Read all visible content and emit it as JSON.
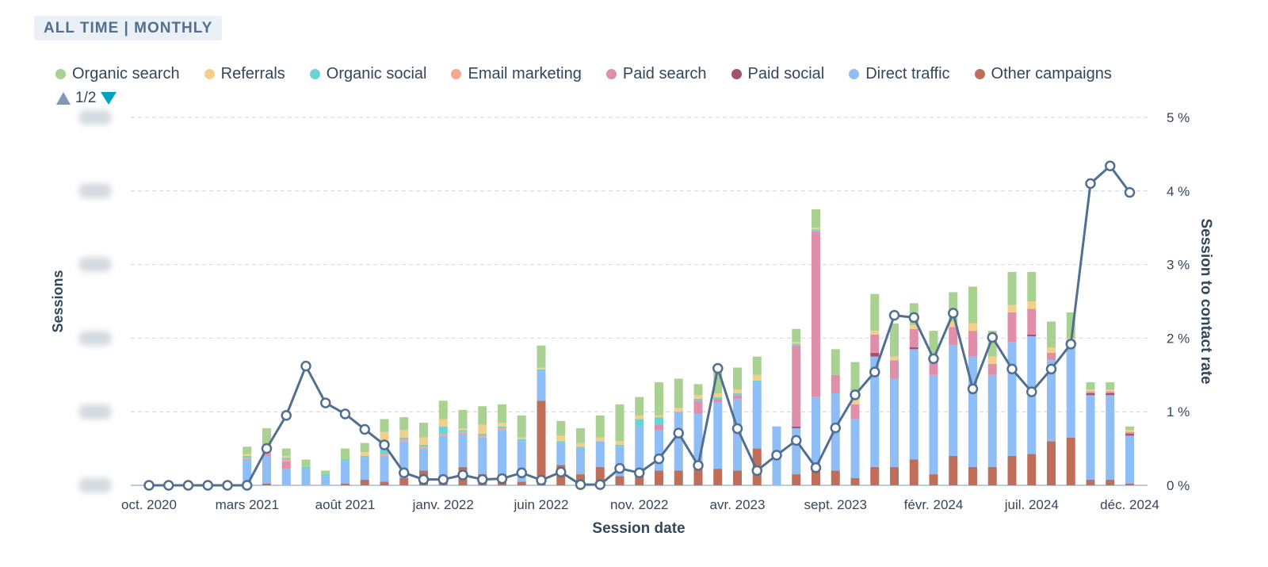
{
  "header": {
    "filter_label": "ALL TIME | MONTHLY"
  },
  "legend": {
    "items": [
      {
        "label": "Organic search",
        "color": "#a8d192"
      },
      {
        "label": "Referrals",
        "color": "#f2d08b"
      },
      {
        "label": "Organic social",
        "color": "#6bd3d6"
      },
      {
        "label": "Email marketing",
        "color": "#f2a98c"
      },
      {
        "label": "Paid search",
        "color": "#e08fab"
      },
      {
        "label": "Paid social",
        "color": "#a5506e"
      },
      {
        "label": "Direct traffic",
        "color": "#8fbdf5"
      },
      {
        "label": "Other campaigns",
        "color": "#bf6e5a"
      }
    ],
    "pager": "1/2"
  },
  "chart_data": {
    "type": "bar",
    "stacked": true,
    "xlabel": "Session date",
    "ylabel": "Sessions",
    "y2label": "Session to contact rate",
    "y_axis_blurred": true,
    "y2_ticks": [
      "0 %",
      "1 %",
      "2 %",
      "3 %",
      "4 %",
      "5 %"
    ],
    "ylim": [
      0,
      100
    ],
    "y2lim": [
      0,
      5
    ],
    "grid": true,
    "legend_position": "top",
    "x_tick_labels": [
      "oct. 2020",
      "mars 2021",
      "août 2021",
      "janv. 2022",
      "juin 2022",
      "nov. 2022",
      "avr. 2023",
      "sept. 2023",
      "févr. 2024",
      "juil. 2024",
      "déc. 2024"
    ],
    "x_tick_every": 5,
    "categories": [
      "oct. 2020",
      "nov. 2020",
      "déc. 2020",
      "janv. 2021",
      "févr. 2021",
      "mars 2021",
      "avr. 2021",
      "mai 2021",
      "juin 2021",
      "juil. 2021",
      "août 2021",
      "sept. 2021",
      "oct. 2021",
      "nov. 2021",
      "déc. 2021",
      "janv. 2022",
      "févr. 2022",
      "mars 2022",
      "avr. 2022",
      "mai 2022",
      "juin 2022",
      "juil. 2022",
      "août 2022",
      "sept. 2022",
      "oct. 2022",
      "nov. 2022",
      "déc. 2022",
      "janv. 2023",
      "févr. 2023",
      "mars 2023",
      "avr. 2023",
      "mai 2023",
      "juin 2023",
      "juil. 2023",
      "août 2023",
      "sept. 2023",
      "oct. 2023",
      "nov. 2023",
      "déc. 2023",
      "janv. 2024",
      "févr. 2024",
      "mars 2024",
      "avr. 2024",
      "mai 2024",
      "juin 2024",
      "juil. 2024",
      "août 2024",
      "sept. 2024",
      "oct. 2024",
      "nov. 2024",
      "déc. 2024"
    ],
    "series": [
      {
        "name": "Other campaigns",
        "values": [
          0,
          0,
          0,
          0,
          0,
          0,
          0.5,
          0,
          0,
          0,
          0.5,
          1.5,
          1,
          2,
          4,
          2.5,
          5,
          3,
          3,
          1,
          23,
          5.5,
          3,
          5,
          2.5,
          3,
          4,
          4,
          4.5,
          4.5,
          4,
          10,
          0,
          3,
          4,
          4,
          2,
          5,
          5,
          7,
          3,
          8,
          5,
          5,
          8,
          8.5,
          12,
          13,
          1.5,
          1.5,
          0.5
        ]
      },
      {
        "name": "Direct traffic",
        "values": [
          0,
          0,
          0,
          0,
          0,
          7,
          7.5,
          4.5,
          4.5,
          2.5,
          6,
          6,
          7,
          10,
          6,
          11,
          9,
          10,
          12,
          11,
          8,
          6,
          7,
          7,
          8,
          13,
          11,
          16,
          15,
          18,
          19.5,
          18,
          16,
          12.5,
          20,
          21,
          16,
          30,
          24,
          30,
          27,
          30,
          30,
          25,
          31,
          32,
          22,
          25,
          23,
          23,
          13
        ]
      },
      {
        "name": "Paid social",
        "values": [
          0,
          0,
          0,
          0,
          0,
          0,
          0,
          0,
          0,
          0,
          0,
          0,
          0,
          0,
          0,
          0,
          0,
          0,
          0,
          0,
          0,
          0,
          0,
          0,
          0,
          0,
          0,
          0,
          0,
          0,
          0,
          0,
          0,
          0.5,
          0,
          0,
          0,
          1,
          0,
          0.5,
          0,
          0,
          0,
          0,
          0,
          0.5,
          0,
          0.5,
          0.5,
          0.5,
          0.5
        ]
      },
      {
        "name": "Paid search",
        "values": [
          0,
          0,
          0,
          0,
          0,
          0,
          0.5,
          2,
          0,
          0,
          0,
          0,
          0,
          0,
          0,
          0,
          0,
          0,
          0,
          0,
          0,
          0,
          0,
          0,
          0,
          0,
          1.5,
          0,
          3.5,
          1,
          1,
          0,
          0,
          22,
          45,
          5,
          4,
          5,
          5,
          5,
          4,
          5,
          7,
          3,
          8,
          7,
          2,
          1,
          0.5,
          0.5,
          0.5
        ]
      },
      {
        "name": "Email marketing",
        "values": [
          0,
          0,
          0,
          0,
          0,
          0.5,
          0.5,
          0.5,
          0,
          0,
          0,
          0,
          0.5,
          0.5,
          0.5,
          0.5,
          0.5,
          0.5,
          0.5,
          0,
          0,
          0,
          0,
          0,
          0,
          0,
          0,
          0,
          0,
          0,
          0,
          0,
          0,
          0,
          0,
          0,
          0,
          0,
          0,
          0,
          0,
          0,
          0,
          0,
          0,
          0,
          0,
          0,
          0,
          0,
          0
        ]
      },
      {
        "name": "Organic social",
        "values": [
          0,
          0,
          0,
          0,
          0,
          0.5,
          0.5,
          0.5,
          0.5,
          0.5,
          0.5,
          0.5,
          2,
          0.5,
          0.5,
          2,
          0.5,
          0.5,
          0.5,
          0.5,
          0.5,
          0.5,
          0.5,
          0,
          0.5,
          2,
          2,
          0,
          0.5,
          0.5,
          0.5,
          0.5,
          0,
          0.5,
          0.5,
          0,
          0,
          0,
          0,
          0,
          0,
          0,
          0,
          0,
          0,
          0,
          0,
          0,
          0,
          0,
          0
        ]
      },
      {
        "name": "Referrals",
        "values": [
          0,
          0,
          0,
          0,
          0,
          0.5,
          1,
          0.5,
          0,
          0,
          0,
          1,
          4,
          2,
          2,
          2,
          0.5,
          2.5,
          1,
          0.5,
          0.5,
          1.5,
          1,
          1,
          1,
          1,
          0.5,
          1,
          1,
          1,
          1,
          1.5,
          0,
          0.5,
          0.5,
          0,
          1.5,
          1,
          1,
          1,
          2,
          1.5,
          2,
          2,
          2,
          2,
          1.5,
          0.5,
          0.5,
          0.5,
          0.5
        ]
      },
      {
        "name": "Organic search",
        "values": [
          0,
          0,
          0,
          0,
          0,
          2,
          5,
          2,
          2,
          1,
          3,
          2.5,
          3.5,
          3.5,
          4,
          5,
          5,
          5,
          5,
          6,
          6,
          4,
          4,
          6,
          10,
          5,
          9,
          8,
          3,
          6,
          6,
          5,
          0,
          3.5,
          5,
          7,
          10,
          10,
          9,
          6,
          6,
          8,
          10,
          7,
          9,
          8,
          7,
          7,
          2,
          2,
          1
        ]
      },
      {
        "name": "Session to contact rate",
        "axis": "right",
        "type": "line",
        "values": [
          0,
          0,
          0,
          0,
          0,
          0,
          0.5,
          0.95,
          1.62,
          1.12,
          0.97,
          0.76,
          0.55,
          0.17,
          0.08,
          0.08,
          0.14,
          0.08,
          0.09,
          0.17,
          0.07,
          0.18,
          0.01,
          0.01,
          0.23,
          0.17,
          0.36,
          0.71,
          0.27,
          1.59,
          0.77,
          0.2,
          0.41,
          0.61,
          0.24,
          0.78,
          1.23,
          1.54,
          2.31,
          2.28,
          1.72,
          2.34,
          1.31,
          2.01,
          1.58,
          1.27,
          1.58,
          1.92,
          4.1,
          4.34,
          3.98
        ]
      }
    ]
  }
}
